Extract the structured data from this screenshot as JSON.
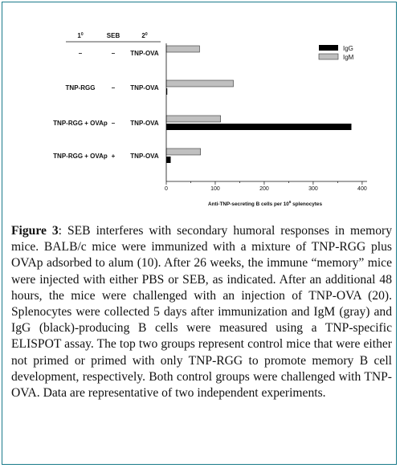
{
  "chart_data": {
    "type": "bar",
    "orientation": "horizontal",
    "column_headers": {
      "primary": "1",
      "seb": "SEB",
      "secondary": "2"
    },
    "rows": [
      {
        "primary": "–",
        "seb": "–",
        "secondary": "TNP-OVA"
      },
      {
        "primary": "TNP-RGG",
        "seb": "–",
        "secondary": "TNP-OVA"
      },
      {
        "primary": "TNP-RGG + OVAp",
        "seb": "–",
        "secondary": "TNP-OVA"
      },
      {
        "primary": "TNP-RGG + OVAp",
        "seb": "+",
        "secondary": "TNP-OVA"
      }
    ],
    "series": [
      {
        "name": "IgG",
        "color": "#000000",
        "values": [
          0,
          2,
          378,
          9
        ]
      },
      {
        "name": "IgM",
        "color": "#c0c0c0",
        "values": [
          68,
          137,
          111,
          70
        ]
      }
    ],
    "xlim": [
      0,
      410
    ],
    "xticks": [
      "0",
      "100",
      "200",
      "300",
      "400"
    ],
    "xlabel": "Anti-TNP-secreting B cells per 10",
    "xlabel_sup": "6",
    "xlabel_tail": " splenocytes",
    "legend_position": "top-right",
    "grid": false
  },
  "caption": {
    "label": "Figure 3",
    "text": ": SEB interferes with secondary humoral responses in memory mice. BALB/c mice were immunized with a mixture of TNP-RGG plus OVAp adsorbed to alum (10). After 26 weeks, the immune “memory” mice were injected with either PBS or SEB, as indicated. After an additional 48 hours, the mice were challenged with an injection of TNP-OVA (20). Splenocytes were collected 5 days after immunization and IgM (gray) and IgG (black)-producing B cells were measured using a TNP-specific ELISPOT assay. The top two groups represent control mice that were either not primed or primed with only TNP-RGG to promote memory B cell development, respectively. Both control groups were challenged with TNP-OVA. Data are representative of two independent experiments."
  }
}
